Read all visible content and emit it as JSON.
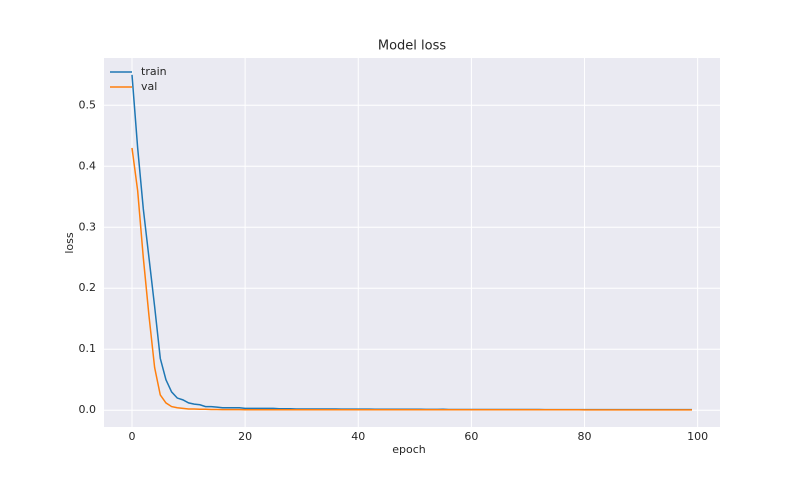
{
  "chart_data": {
    "type": "line",
    "title": "Model loss",
    "xlabel": "epoch",
    "ylabel": "loss",
    "x": [
      0,
      1,
      2,
      3,
      4,
      5,
      6,
      7,
      8,
      9,
      10,
      11,
      12,
      13,
      14,
      15,
      16,
      17,
      18,
      19,
      20,
      21,
      22,
      23,
      24,
      25,
      26,
      27,
      28,
      29,
      30,
      31,
      32,
      33,
      34,
      35,
      36,
      37,
      38,
      39,
      40,
      41,
      42,
      43,
      44,
      45,
      46,
      47,
      48,
      49,
      50,
      51,
      52,
      53,
      54,
      55,
      56,
      57,
      58,
      59,
      60,
      61,
      62,
      63,
      64,
      65,
      66,
      67,
      68,
      69,
      70,
      71,
      72,
      73,
      74,
      75,
      76,
      77,
      78,
      79,
      80,
      81,
      82,
      83,
      84,
      85,
      86,
      87,
      88,
      89,
      90,
      91,
      92,
      93,
      94,
      95,
      96,
      97,
      98,
      99
    ],
    "series": [
      {
        "name": "train",
        "color": "#1f77b4",
        "values": [
          0.55,
          0.43,
          0.33,
          0.25,
          0.17,
          0.085,
          0.05,
          0.03,
          0.02,
          0.017,
          0.012,
          0.01,
          0.009,
          0.006,
          0.006,
          0.005,
          0.004,
          0.004,
          0.004,
          0.004,
          0.003,
          0.003,
          0.003,
          0.003,
          0.003,
          0.003,
          0.0025,
          0.0025,
          0.0025,
          0.002,
          0.002,
          0.002,
          0.002,
          0.002,
          0.002,
          0.002,
          0.002,
          0.0018,
          0.0018,
          0.0018,
          0.0018,
          0.0018,
          0.0018,
          0.0015,
          0.0015,
          0.0015,
          0.0015,
          0.0015,
          0.0015,
          0.0015,
          0.0015,
          0.0015,
          0.0013,
          0.0013,
          0.0013,
          0.0015,
          0.0012,
          0.0012,
          0.0012,
          0.0012,
          0.0012,
          0.0012,
          0.0012,
          0.0012,
          0.0012,
          0.0011,
          0.0011,
          0.0011,
          0.0011,
          0.0011,
          0.0011,
          0.0011,
          0.0011,
          0.001,
          0.001,
          0.001,
          0.001,
          0.001,
          0.001,
          0.001,
          0.001,
          0.001,
          0.001,
          0.001,
          0.001,
          0.001,
          0.001,
          0.001,
          0.001,
          0.001,
          0.0009,
          0.0009,
          0.0009,
          0.0009,
          0.0009,
          0.0009,
          0.0009,
          0.0009,
          0.0009,
          0.0009
        ]
      },
      {
        "name": "val",
        "color": "#ff7f0e",
        "values": [
          0.43,
          0.36,
          0.25,
          0.155,
          0.07,
          0.025,
          0.012,
          0.006,
          0.004,
          0.003,
          0.002,
          0.002,
          0.0015,
          0.0015,
          0.0012,
          0.0012,
          0.001,
          0.001,
          0.001,
          0.001,
          0.0008,
          0.0008,
          0.0008,
          0.0008,
          0.0008,
          0.0008,
          0.0008,
          0.0008,
          0.0008,
          0.0008,
          0.0008,
          0.0008,
          0.0008,
          0.0008,
          0.0008,
          0.0008,
          0.0008,
          0.0008,
          0.0008,
          0.0008,
          0.0008,
          0.0008,
          0.0008,
          0.0008,
          0.0008,
          0.0008,
          0.0008,
          0.0008,
          0.0008,
          0.0008,
          0.0007,
          0.0007,
          0.0007,
          0.0007,
          0.0007,
          0.0007,
          0.0007,
          0.0007,
          0.0007,
          0.0007,
          0.0007,
          0.0007,
          0.0007,
          0.0007,
          0.0007,
          0.0007,
          0.0007,
          0.0007,
          0.0007,
          0.0007,
          0.0007,
          0.0007,
          0.0007,
          0.0007,
          0.0007,
          0.0007,
          0.0007,
          0.0007,
          0.0007,
          0.0007,
          0.0006,
          0.0006,
          0.0006,
          0.0006,
          0.0006,
          0.0006,
          0.0006,
          0.0006,
          0.0006,
          0.0006,
          0.0006,
          0.0006,
          0.0006,
          0.0006,
          0.0006,
          0.0006,
          0.0006,
          0.0006,
          0.0006,
          0.0006
        ]
      }
    ],
    "xlim": [
      -4.95,
      103.95
    ],
    "ylim": [
      -0.0275,
      0.5775
    ],
    "xticks": [
      0,
      20,
      40,
      60,
      80,
      100
    ],
    "yticks": [
      {
        "value": 0,
        "label": "0.0"
      },
      0.1,
      0.2,
      0.3,
      0.4,
      0.5
    ],
    "grid": true,
    "legend": "upper left"
  }
}
